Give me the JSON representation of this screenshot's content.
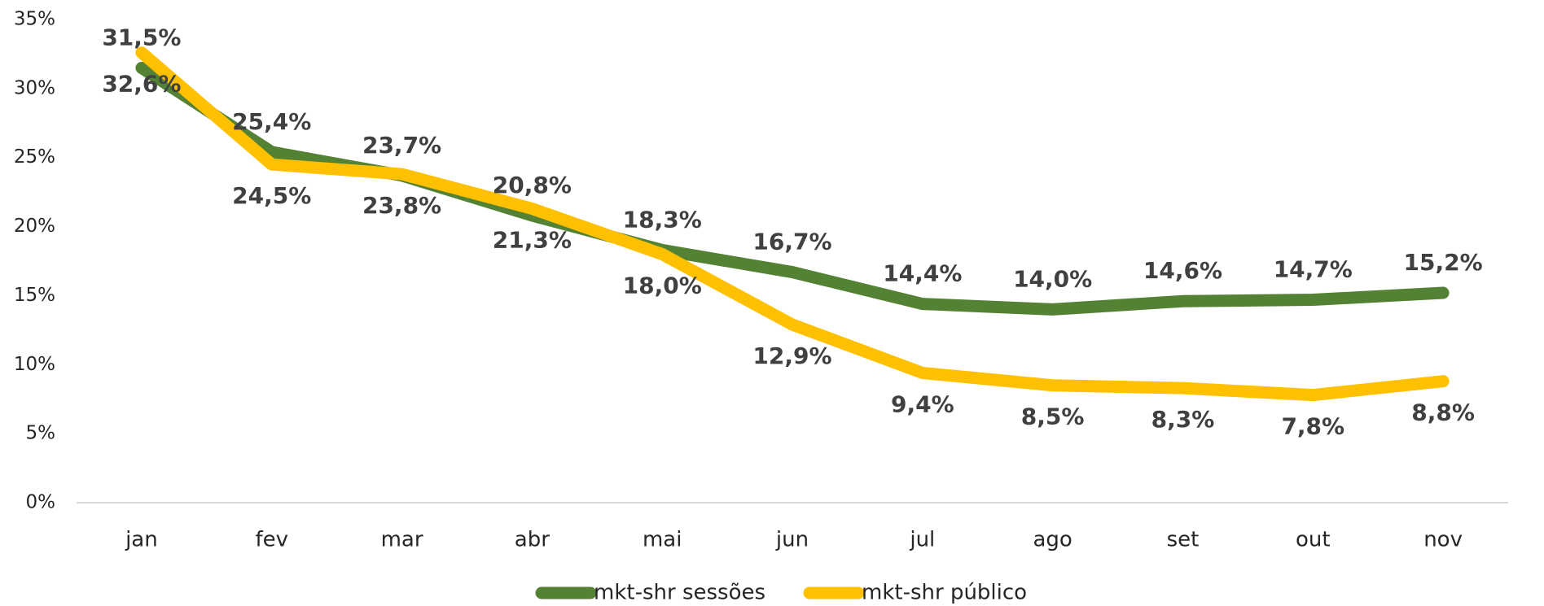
{
  "chart_data": {
    "type": "line",
    "categories": [
      "jan",
      "fev",
      "mar",
      "abr",
      "mai",
      "jun",
      "jul",
      "ago",
      "set",
      "out",
      "nov"
    ],
    "series": [
      {
        "name": "mkt-shr sessões",
        "color": "#548235",
        "values": [
          31.5,
          25.4,
          23.7,
          20.8,
          18.3,
          16.7,
          14.4,
          14.0,
          14.6,
          14.7,
          15.2
        ],
        "value_labels": [
          "31,5%",
          "25,4%",
          "23,7%",
          "20,8%",
          "18,3%",
          "16,7%",
          "14,4%",
          "14,0%",
          "14,6%",
          "14,7%",
          "15,2%"
        ]
      },
      {
        "name": "mkt-shr público",
        "color": "#ffc000",
        "values": [
          32.6,
          24.5,
          23.8,
          21.3,
          18.0,
          12.9,
          9.4,
          8.5,
          8.3,
          7.8,
          8.8
        ],
        "value_labels": [
          "32,6%",
          "24,5%",
          "23,8%",
          "21,3%",
          "18,0%",
          "12,9%",
          "9,4%",
          "8,5%",
          "8,3%",
          "7,8%",
          "8,8%"
        ]
      }
    ],
    "ylim": [
      0,
      35
    ],
    "yticks": [
      {
        "value": 0,
        "label": "0%"
      },
      {
        "value": 5,
        "label": "5%"
      },
      {
        "value": 10,
        "label": "10%"
      },
      {
        "value": 15,
        "label": "15%"
      },
      {
        "value": 20,
        "label": "20%"
      },
      {
        "value": 25,
        "label": "25%"
      },
      {
        "value": 30,
        "label": "30%"
      },
      {
        "value": 35,
        "label": "35%"
      }
    ],
    "legend": "bottom"
  }
}
